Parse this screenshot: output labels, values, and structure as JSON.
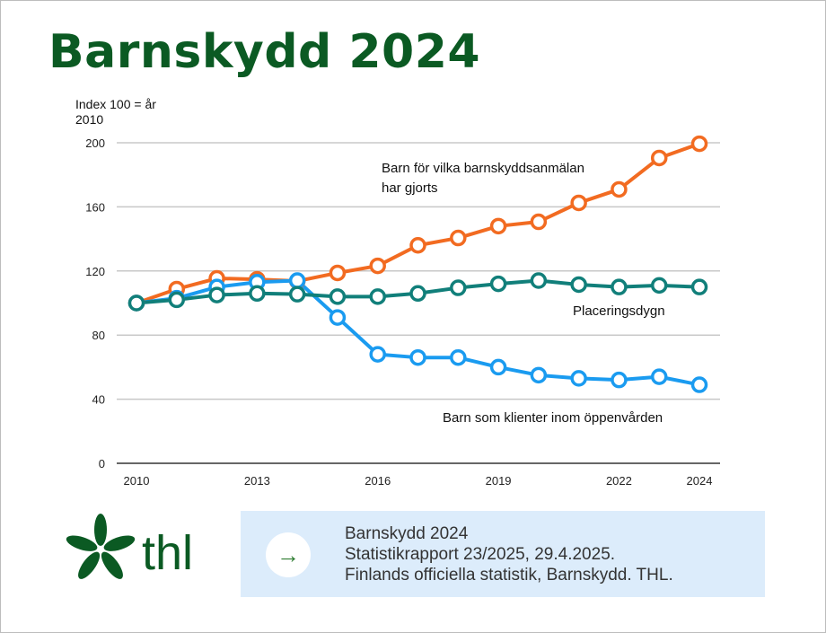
{
  "title": "Barnskydd 2024",
  "chart_data": {
    "type": "line",
    "ylabel": "Index 100 = år 2010",
    "x": [
      2010,
      2011,
      2012,
      2013,
      2014,
      2015,
      2016,
      2017,
      2018,
      2019,
      2020,
      2021,
      2022,
      2023,
      2024
    ],
    "xticks": [
      "2010",
      "2013",
      "2016",
      "2019",
      "2022",
      "2024"
    ],
    "yticks": [
      "0",
      "40",
      "80",
      "120",
      "160",
      "200"
    ],
    "ylim": [
      0,
      200
    ],
    "grid": true,
    "series": [
      {
        "name": "Barn för vilka barnskyddsanmälan har gjorts",
        "label_lines": [
          "Barn för vilka barnskyddsanmälan",
          "har gjorts"
        ],
        "color": "#f26b21",
        "values": [
          100,
          108.7,
          115.4,
          114.8,
          113.7,
          118.8,
          123.2,
          136,
          140.6,
          148,
          150.7,
          162.5,
          170.9,
          190.5,
          199.4
        ]
      },
      {
        "name": "Barn som klienter inom öppenvården",
        "label_lines": [
          "Barn som klienter inom öppenvården"
        ],
        "color": "#1a9bf0",
        "values": [
          100,
          103,
          110,
          113,
          114,
          91,
          68,
          66,
          66,
          60,
          55,
          53,
          52,
          54,
          49
        ]
      },
      {
        "name": "Placeringsdygn",
        "label_lines": [
          "Placeringsdygn"
        ],
        "color": "#117f7a",
        "values": [
          100,
          102,
          105,
          106,
          105.5,
          104,
          104,
          106,
          109.5,
          112,
          114,
          111.5,
          110,
          111,
          110
        ]
      }
    ]
  },
  "footer": {
    "logo_text": "thl",
    "lines": [
      "Barnskydd 2024",
      "Statistikrapport 23/2025, 29.4.2025.",
      "Finlands officiella statistik, Barnskydd. THL."
    ],
    "arrow_icon": "arrow-right-icon"
  },
  "colors": {
    "brand_green": "#0b5a23",
    "info_box": "#dcecfb"
  }
}
